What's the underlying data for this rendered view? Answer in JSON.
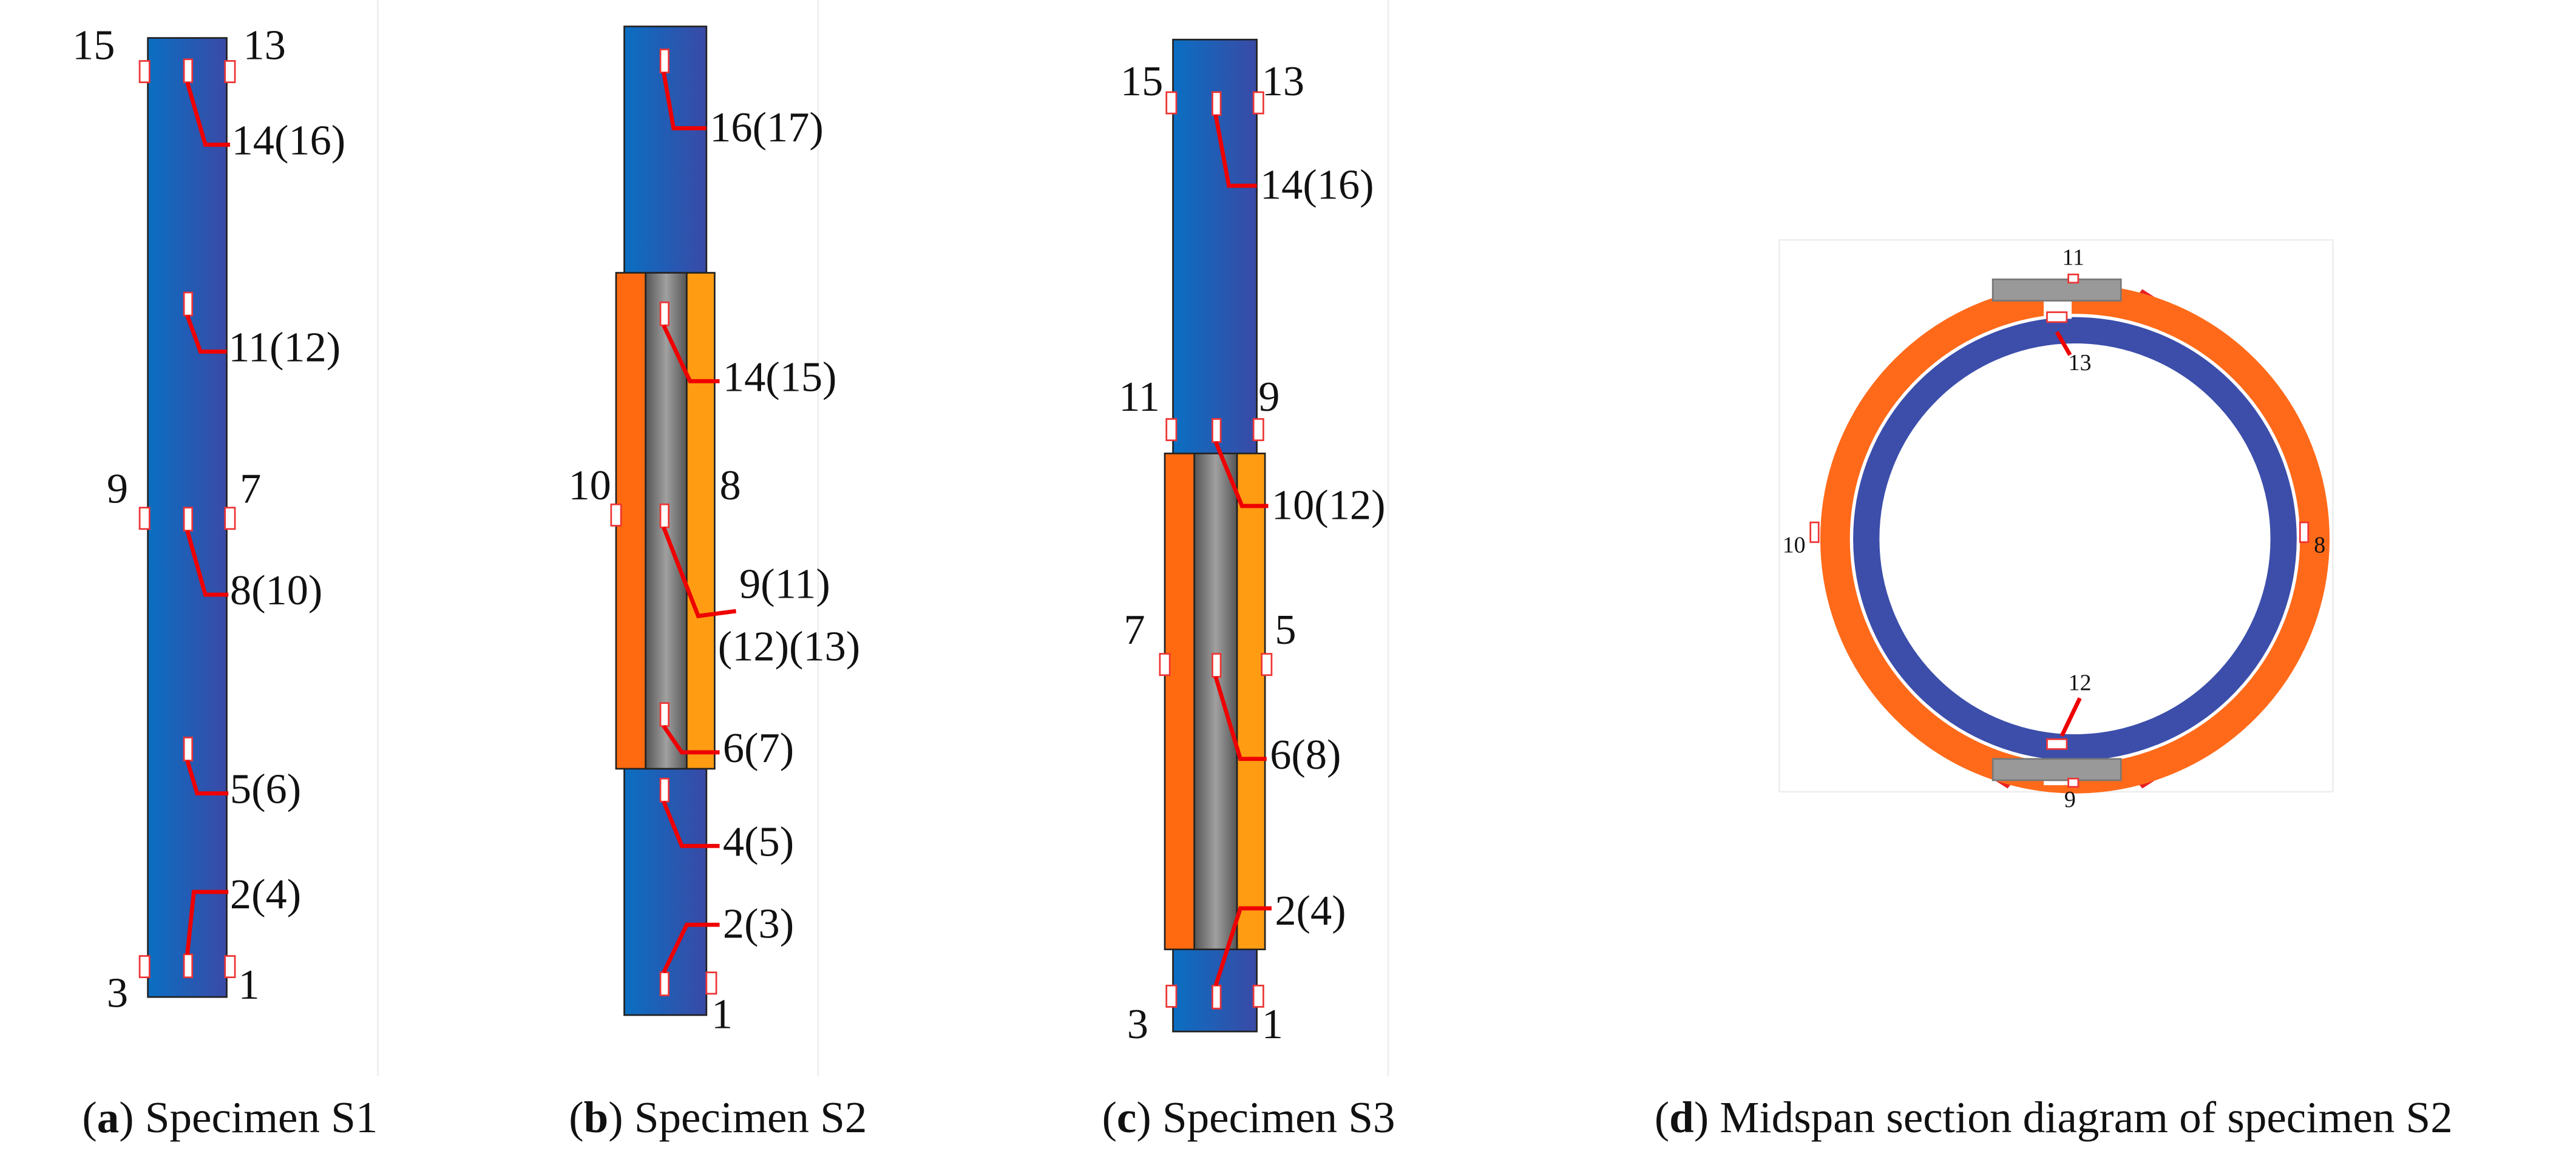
{
  "panels": [
    {
      "labels": [
        "15",
        "13",
        "14(16)",
        "11(12)",
        "9",
        "7",
        "8(10)",
        "5(6)",
        "2(4)",
        "3",
        "1"
      ],
      "caption": {
        "open": "(",
        "letter": "a",
        "rest": ") Specimen S1"
      }
    },
    {
      "labels": [
        "16(17)",
        "14(15)",
        "10",
        "8",
        "9(11)",
        "(12)(13)",
        "6(7)",
        "4(5)",
        "2(3)",
        "1"
      ],
      "caption": {
        "open": "(",
        "letter": "b",
        "rest": ") Specimen S2"
      }
    },
    {
      "labels": [
        "15",
        "13",
        "14(16)",
        "11",
        "9",
        "10(12)",
        "7",
        "5",
        "6(8)",
        "2(4)",
        "3",
        "1"
      ],
      "caption": {
        "open": "(",
        "letter": "c",
        "rest": ") Specimen S3"
      }
    },
    {
      "labels": [
        "11",
        "13",
        "10",
        "8",
        "12",
        "9"
      ],
      "caption": {
        "open": "(",
        "letter": "d",
        "rest": ") Midspan section diagram of specimen S2"
      }
    }
  ]
}
